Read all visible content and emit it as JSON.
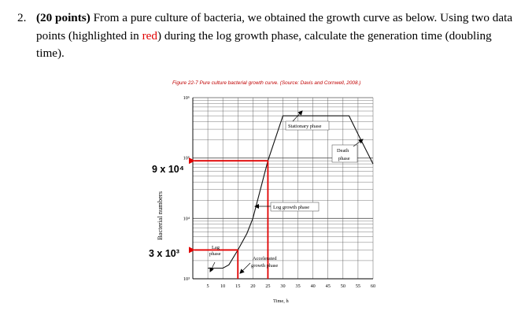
{
  "question": {
    "number": "2.",
    "points": "(20 points)",
    "text_before_red": " From a pure culture of bacteria, we obtained the growth curve as below. Using two data points (highlighted in ",
    "red_word": "red",
    "text_after_red": ") during the log growth phase, calculate the generation time (doubling time)."
  },
  "figure": {
    "caption": "Figure 22-7 Pure culture bacterial growth curve. (Source: Davis and Cornwell, 2008.)",
    "ylabel": "Bacterial numbers",
    "xlabel": "Time, h",
    "y_tick_labels": [
      "10⁶",
      "10⁵",
      "10⁴",
      "10³"
    ],
    "x_tick_labels": [
      "5",
      "10",
      "15",
      "20",
      "25",
      "30",
      "35",
      "40",
      "45",
      "50",
      "55",
      "60"
    ],
    "annotations": {
      "stationary": "Stationary phase",
      "death_1": "Death",
      "death_2": "phase",
      "log": "Log growth phase",
      "lag_1": "Lag",
      "lag_2": "phase",
      "accel_1": "Accelerated",
      "accel_2": "growth phase"
    },
    "highlight_labels": {
      "upper": "9 x 10⁴",
      "lower": "3 x 10³"
    },
    "colors": {
      "highlight": "#e00000",
      "caption": "#c00000"
    }
  },
  "chart_data": {
    "type": "line",
    "title": "Figure 22-7 Pure culture bacterial growth curve. (Source: Davis and Cornwell, 2008.)",
    "xlabel": "Time, h",
    "ylabel": "Bacterial numbers",
    "y_scale": "log",
    "xlim": [
      0,
      60
    ],
    "ylim": [
      1000,
      1000000
    ],
    "grid": true,
    "series": [
      {
        "x": [
          5,
          10,
          12,
          15,
          18,
          20,
          25,
          30,
          35,
          40,
          45,
          50,
          52,
          55,
          60
        ],
        "y": [
          1500,
          1500,
          1700,
          3000,
          5600,
          10000,
          90000,
          500000,
          500000,
          500000,
          500000,
          500000,
          500000,
          250000,
          80000
        ]
      }
    ],
    "highlighted_points": [
      {
        "x": 15,
        "y": 3000
      },
      {
        "x": 25,
        "y": 90000
      }
    ]
  }
}
